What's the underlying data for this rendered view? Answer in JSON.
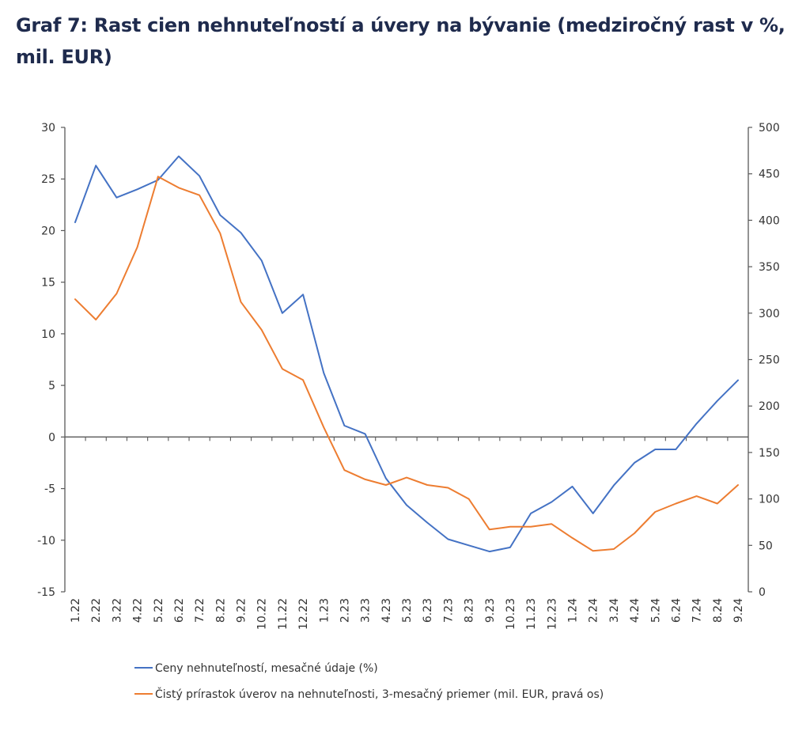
{
  "title": "Graf 7: Rast cien nehnuteľností a úvery na bývanie (medziročný rast v %, mil. EUR)",
  "chart_data": {
    "type": "line",
    "title": "Graf 7: Rast cien nehnuteľností a úvery na bývanie (medziročný rast v %, mil. EUR)",
    "xlabel": "",
    "ylabel": "",
    "ylabel_right": "",
    "grid": false,
    "legend_position": "bottom",
    "categories": [
      "1.22",
      "2.22",
      "3.22",
      "4.22",
      "5.22",
      "6.22",
      "7.22",
      "8.22",
      "9.22",
      "10.22",
      "11.22",
      "12.22",
      "1.23",
      "2.23",
      "3.23",
      "4.23",
      "5.23",
      "6.23",
      "7.23",
      "8.23",
      "9.23",
      "10.23",
      "11.23",
      "12.23",
      "1.24",
      "2.24",
      "3.24",
      "4.24",
      "5.24",
      "6.24",
      "7.24",
      "8.24",
      "9.24"
    ],
    "y_left": {
      "ylim": [
        -15,
        30
      ],
      "ticks": [
        -15,
        -10,
        -5,
        0,
        5,
        10,
        15,
        20,
        25,
        30
      ]
    },
    "y_right": {
      "ylim": [
        0,
        500
      ],
      "ticks": [
        0,
        50,
        100,
        150,
        200,
        250,
        300,
        350,
        400,
        450,
        500
      ]
    },
    "series": [
      {
        "name": "Ceny nehnuteľností, mesačné údaje (%)",
        "axis": "left",
        "color": "#4472C4",
        "values": [
          20.8,
          26.3,
          23.2,
          24.0,
          24.9,
          27.2,
          25.3,
          21.5,
          19.8,
          17.1,
          12.0,
          13.8,
          6.2,
          1.1,
          0.3,
          -4.0,
          -6.6,
          -8.3,
          -9.9,
          -10.5,
          -11.1,
          -10.7,
          -7.4,
          -6.3,
          -4.8,
          -7.4,
          -4.7,
          -2.5,
          -1.2,
          -1.2,
          1.3,
          3.5,
          5.5
        ]
      },
      {
        "name": "Čistý prírastok úverov na nehnuteľnosti, 3-mesačný priemer (mil. EUR, pravá os)",
        "axis": "right",
        "color": "#ED7D31",
        "values": [
          315,
          293,
          321,
          371,
          447,
          435,
          427,
          386,
          312,
          282,
          240,
          228,
          177,
          131,
          121,
          115,
          123,
          115,
          112,
          100,
          67,
          70,
          70,
          73,
          58,
          44,
          46,
          63,
          86,
          95,
          103,
          95,
          115
        ]
      }
    ]
  }
}
